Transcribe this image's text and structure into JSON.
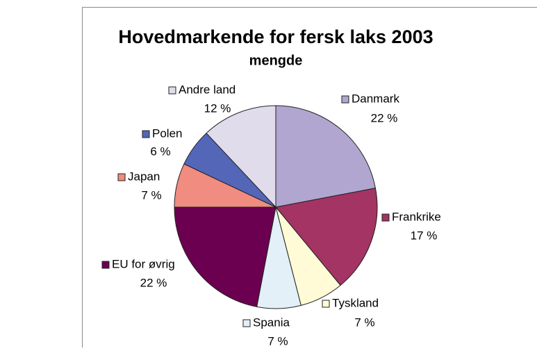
{
  "chart_data": {
    "type": "pie",
    "title": "Hovedmarkende for fersk laks 2003",
    "subtitle": "mengde",
    "categories": [
      "Danmark",
      "Frankrike",
      "Tyskland",
      "Spania",
      "EU for øvrig",
      "Japan",
      "Polen",
      "Andre land"
    ],
    "values": [
      22,
      17,
      7,
      7,
      22,
      7,
      6,
      12
    ],
    "value_labels": [
      "22 %",
      "17 %",
      "7 %",
      "7 %",
      "22 %",
      "7 %",
      "6 %",
      "12 %"
    ],
    "colors": [
      "#b0a6d0",
      "#a33463",
      "#fffbd6",
      "#e3f0f8",
      "#6b0050",
      "#f08c80",
      "#5466b8",
      "#e0dcec"
    ]
  }
}
